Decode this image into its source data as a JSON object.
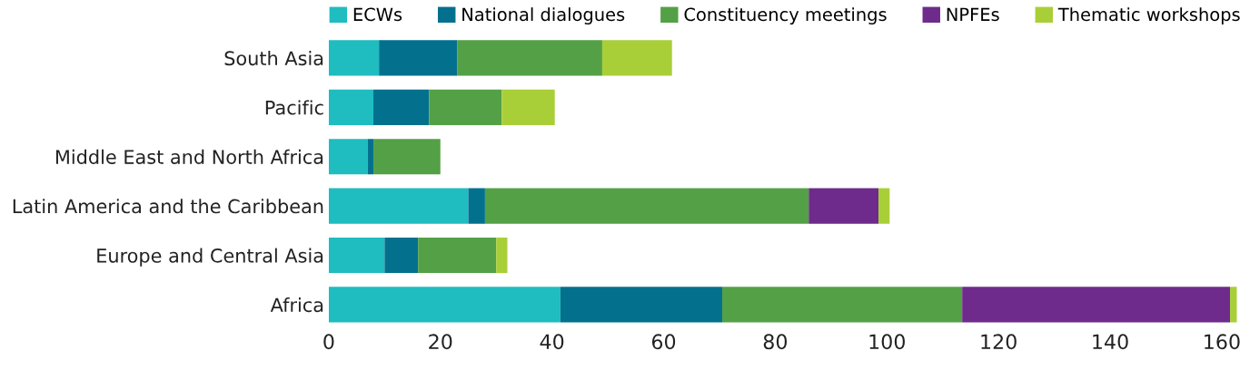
{
  "chart_data": {
    "type": "bar",
    "orientation": "horizontal",
    "stacked": true,
    "categories": [
      "South Asia",
      "Pacific",
      "Middle East and North Africa",
      "Latin America and the Caribbean",
      "Europe and Central Asia",
      "Africa"
    ],
    "series": [
      {
        "name": "ECWs",
        "color": "#1fbcc0",
        "values": [
          9,
          8,
          7,
          25,
          10,
          41.5
        ]
      },
      {
        "name": "National dialogues",
        "color": "#03718e",
        "values": [
          14,
          10,
          1,
          3,
          6,
          29
        ]
      },
      {
        "name": "Constituency meetings",
        "color": "#54a046",
        "values": [
          26,
          13,
          12,
          58,
          14,
          43
        ]
      },
      {
        "name": "NPFEs",
        "color": "#6e2b8c",
        "values": [
          0,
          0,
          0,
          12.5,
          0,
          48
        ]
      },
      {
        "name": "Thematic workshops",
        "color": "#a9cf38",
        "values": [
          12.5,
          9.5,
          0,
          2,
          2,
          1.2
        ]
      }
    ],
    "xlim": [
      0,
      163.5
    ],
    "xticks": [
      0,
      20,
      40,
      60,
      80,
      100,
      120,
      140,
      160
    ],
    "grid": false,
    "legend": "top"
  }
}
